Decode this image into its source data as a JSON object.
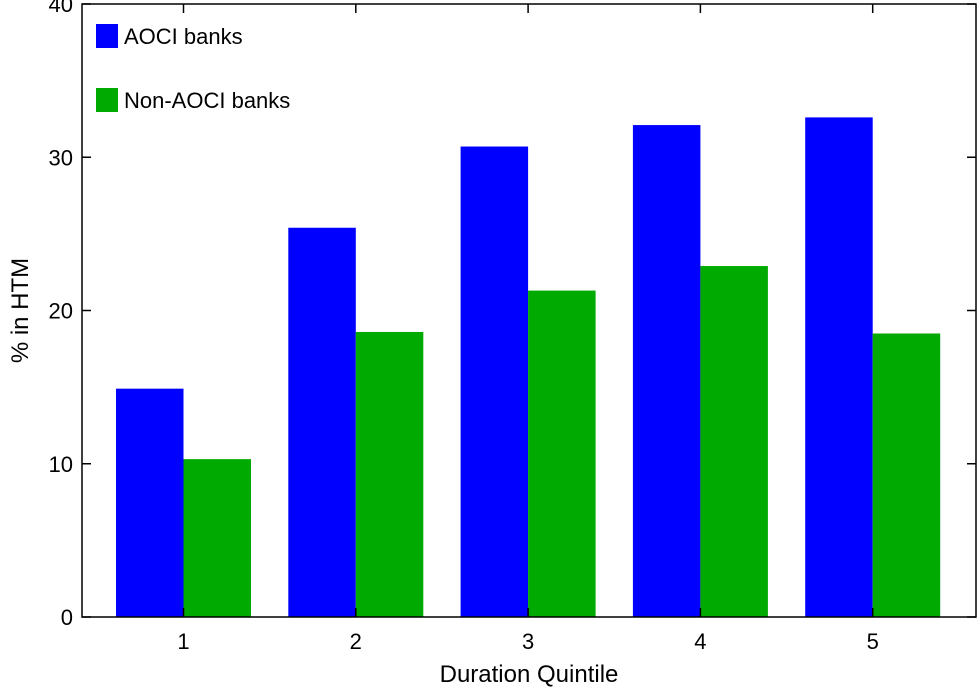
{
  "chart_data": {
    "type": "bar",
    "categories": [
      "1",
      "2",
      "3",
      "4",
      "5"
    ],
    "series": [
      {
        "name": "AOCI banks",
        "color": "#0000ff",
        "values": [
          14.9,
          25.4,
          30.7,
          32.1,
          32.6
        ]
      },
      {
        "name": "Non-AOCI banks",
        "color": "#00aa00",
        "values": [
          10.3,
          18.6,
          21.3,
          22.9,
          18.5
        ]
      }
    ],
    "xlabel": "Duration Quintile",
    "ylabel": "% in HTM",
    "ylim": [
      0,
      40
    ],
    "yticks": [
      "0",
      "10",
      "20",
      "30",
      "40"
    ],
    "grid": false,
    "legend_position": "top-left"
  }
}
